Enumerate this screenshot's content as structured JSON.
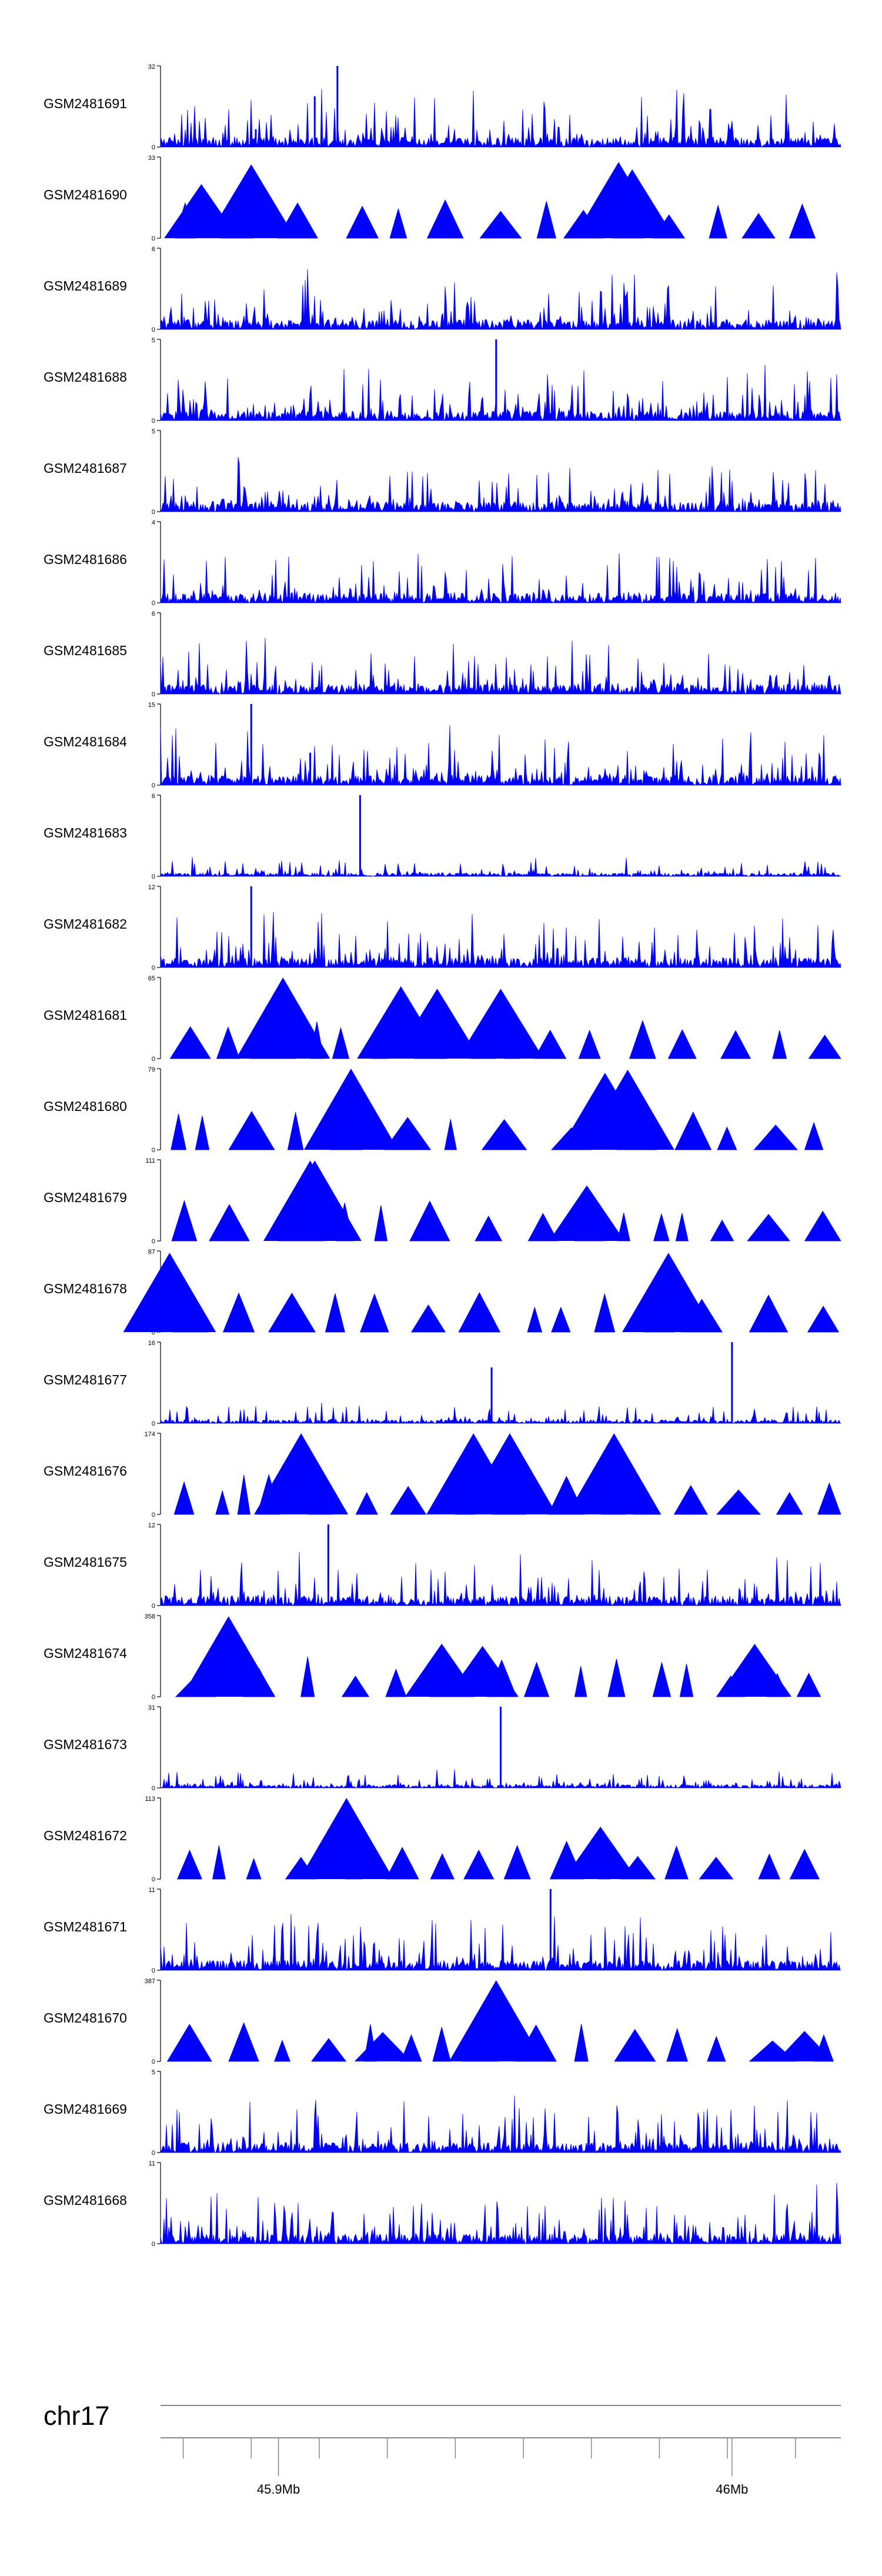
{
  "chart_data": {
    "type": "area",
    "chromosome": "chr17",
    "x_axis": {
      "range_mb": [
        45.874,
        46.024
      ],
      "major_ticks": [
        45.9,
        46.0
      ],
      "major_tick_labels": [
        "45.9Mb",
        "46Mb"
      ],
      "minor_tick_step_mb": 0.015
    },
    "fill_color": "#0000ff",
    "tracks": [
      {
        "name": "GSM2481691",
        "ymax": 32,
        "ymin": 0,
        "style": "noise",
        "peak_values": [
          [
            45.913,
            32
          ],
          [
            45.908,
            20
          ],
          [
            45.895,
            7
          ]
        ]
      },
      {
        "name": "GSM2481690",
        "ymax": 33,
        "ymin": 0,
        "style": "triangles",
        "peak_values": [
          [
            45.883,
            22
          ],
          [
            45.894,
            30
          ],
          [
            45.975,
            31
          ],
          [
            45.978,
            28
          ]
        ]
      },
      {
        "name": "GSM2481689",
        "ymax": 6,
        "ymin": 0,
        "style": "noise",
        "peak_values": []
      },
      {
        "name": "GSM2481688",
        "ymax": 5,
        "ymin": 0,
        "style": "noise",
        "peak_values": [
          [
            45.948,
            5
          ]
        ]
      },
      {
        "name": "GSM2481687",
        "ymax": 5,
        "ymin": 0,
        "style": "noise",
        "peak_values": []
      },
      {
        "name": "GSM2481686",
        "ymax": 4,
        "ymin": 0,
        "style": "noise",
        "peak_values": []
      },
      {
        "name": "GSM2481685",
        "ymax": 6,
        "ymin": 0,
        "style": "noise",
        "peak_values": []
      },
      {
        "name": "GSM2481684",
        "ymax": 15,
        "ymin": 0,
        "style": "noise",
        "peak_values": [
          [
            45.894,
            15
          ],
          [
            45.907,
            6
          ]
        ]
      },
      {
        "name": "GSM2481683",
        "ymax": 6,
        "ymin": 0,
        "style": "noise",
        "peak_values": [
          [
            45.918,
            6
          ]
        ]
      },
      {
        "name": "GSM2481682",
        "ymax": 12,
        "ymin": 0,
        "style": "noise",
        "peak_values": [
          [
            45.894,
            12
          ]
        ]
      },
      {
        "name": "GSM2481681",
        "ymax": 65,
        "ymin": 0,
        "style": "triangles",
        "peak_values": [
          [
            45.901,
            65
          ],
          [
            45.927,
            58
          ],
          [
            45.935,
            56
          ],
          [
            45.949,
            56
          ]
        ]
      },
      {
        "name": "GSM2481680",
        "ymax": 79,
        "ymin": 0,
        "style": "triangles",
        "peak_values": [
          [
            45.916,
            79
          ],
          [
            45.977,
            78
          ],
          [
            45.972,
            75
          ]
        ]
      },
      {
        "name": "GSM2481679",
        "ymax": 111,
        "ymin": 0,
        "style": "triangles",
        "peak_values": [
          [
            45.908,
            110
          ],
          [
            45.907,
            110
          ],
          [
            45.968,
            76
          ]
        ]
      },
      {
        "name": "GSM2481678",
        "ymax": 87,
        "ymin": 0,
        "style": "triangles",
        "peak_values": [
          [
            45.876,
            85
          ],
          [
            45.986,
            85
          ]
        ]
      },
      {
        "name": "GSM2481677",
        "ymax": 16,
        "ymin": 0,
        "style": "noise",
        "peak_values": [
          [
            46.0,
            16
          ],
          [
            45.947,
            11
          ]
        ]
      },
      {
        "name": "GSM2481676",
        "ymax": 174,
        "ymin": 0,
        "style": "triangles",
        "peak_values": [
          [
            45.905,
            174
          ],
          [
            45.943,
            174
          ],
          [
            45.951,
            174
          ],
          [
            45.974,
            174
          ]
        ]
      },
      {
        "name": "GSM2481675",
        "ymax": 12,
        "ymin": 0,
        "style": "noise",
        "peak_values": [
          [
            45.911,
            12
          ]
        ]
      },
      {
        "name": "GSM2481674",
        "ymax": 358,
        "ymin": 0,
        "style": "triangles",
        "peak_values": [
          [
            45.889,
            355
          ],
          [
            45.936,
            234
          ],
          [
            46.005,
            233
          ],
          [
            45.945,
            224
          ]
        ]
      },
      {
        "name": "GSM2481673",
        "ymax": 31,
        "ymin": 0,
        "style": "noise",
        "peak_values": [
          [
            45.949,
            31
          ]
        ]
      },
      {
        "name": "GSM2481672",
        "ymax": 113,
        "ymin": 0,
        "style": "triangles",
        "peak_values": [
          [
            45.915,
            113
          ],
          [
            45.971,
            73
          ]
        ]
      },
      {
        "name": "GSM2481671",
        "ymax": 11,
        "ymin": 0,
        "style": "noise",
        "peak_values": [
          [
            45.96,
            11
          ]
        ]
      },
      {
        "name": "GSM2481670",
        "ymax": 387,
        "ymin": 0,
        "style": "triangles",
        "peak_values": [
          [
            45.948,
            387
          ],
          [
            45.923,
            140
          ],
          [
            46.016,
            145
          ]
        ]
      },
      {
        "name": "GSM2481669",
        "ymax": 5,
        "ymin": 0,
        "style": "noise",
        "peak_values": []
      },
      {
        "name": "GSM2481668",
        "ymax": 11,
        "ymin": 0,
        "style": "noise",
        "peak_values": []
      }
    ]
  }
}
